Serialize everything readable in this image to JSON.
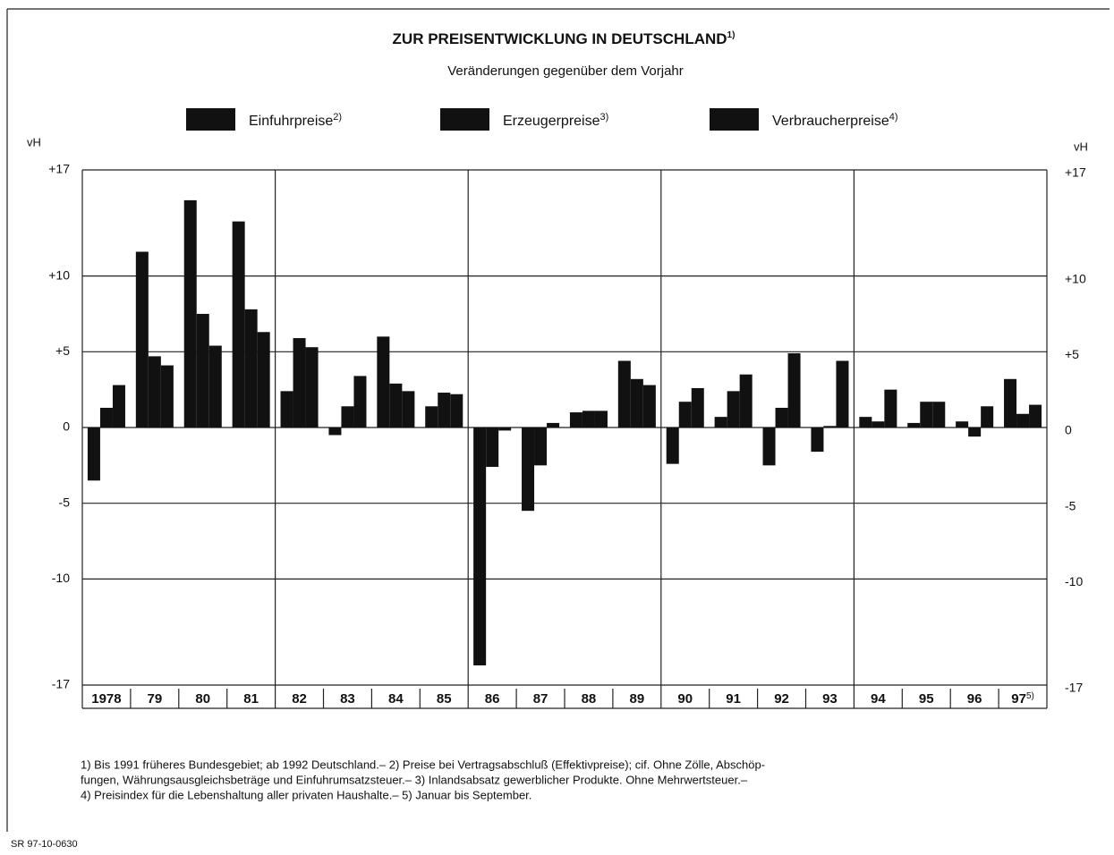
{
  "chart_data": {
    "type": "bar",
    "title": "ZUR PREISENTWICKLUNG IN DEUTSCHLAND",
    "title_note": "1)",
    "subtitle": "Veränderungen gegenüber dem Vorjahr",
    "ylabel": "vH",
    "y2label": "vH",
    "categories": [
      "1978",
      "79",
      "80",
      "81",
      "82",
      "83",
      "84",
      "85",
      "86",
      "87",
      "88",
      "89",
      "90",
      "91",
      "92",
      "93",
      "94",
      "95",
      "96",
      "97"
    ],
    "category_notes": [
      null,
      null,
      null,
      null,
      null,
      null,
      null,
      null,
      null,
      null,
      null,
      null,
      null,
      null,
      null,
      null,
      null,
      null,
      null,
      "5)"
    ],
    "series": [
      {
        "name": "Einfuhrpreise",
        "note": "2)",
        "color": "#111111",
        "values": [
          -3.5,
          11.6,
          15.0,
          13.6,
          2.4,
          -0.5,
          6.0,
          1.4,
          -15.7,
          -5.5,
          1.0,
          4.4,
          -2.4,
          0.7,
          -2.5,
          -1.6,
          0.7,
          0.3,
          0.4,
          3.2
        ]
      },
      {
        "name": "Erzeugerpreise",
        "note": "3)",
        "color": "#111111",
        "values": [
          1.3,
          4.7,
          7.5,
          7.8,
          5.9,
          1.4,
          2.9,
          2.3,
          -2.6,
          -2.5,
          1.1,
          3.2,
          1.7,
          2.4,
          1.3,
          0.1,
          0.4,
          1.7,
          -0.6,
          0.9
        ]
      },
      {
        "name": "Verbraucherpreise",
        "note": "4)",
        "color": "#111111",
        "values": [
          2.8,
          4.1,
          5.4,
          6.3,
          5.3,
          3.4,
          2.4,
          2.2,
          -0.2,
          0.3,
          1.1,
          2.8,
          2.6,
          3.5,
          4.9,
          4.4,
          2.5,
          1.7,
          1.4,
          1.5
        ]
      }
    ],
    "ylim": [
      -17,
      17
    ],
    "yticks": [
      {
        "value": 17,
        "label": "+17"
      },
      {
        "value": 10,
        "label": "+10"
      },
      {
        "value": 5,
        "label": "+5"
      },
      0,
      -5,
      -10,
      -17
    ],
    "grid": true,
    "footnotes": [
      "1) Bis 1991 früheres Bundesgebiet; ab 1992 Deutschland.– 2) Preise bei Vertragsabschluß (Effektivpreise); cif. Ohne Zölle, Abschöp-",
      "fungen, Währungsausgleichsbeträge und Einfuhrumsatzsteuer.– 3) Inlandsabsatz gewerblicher Produkte. Ohne Mehrwertsteuer.–",
      "4) Preisindex für die Lebenshaltung aller privaten Haushalte.– 5) Januar bis September."
    ],
    "source": "SR 97-10-0630"
  }
}
